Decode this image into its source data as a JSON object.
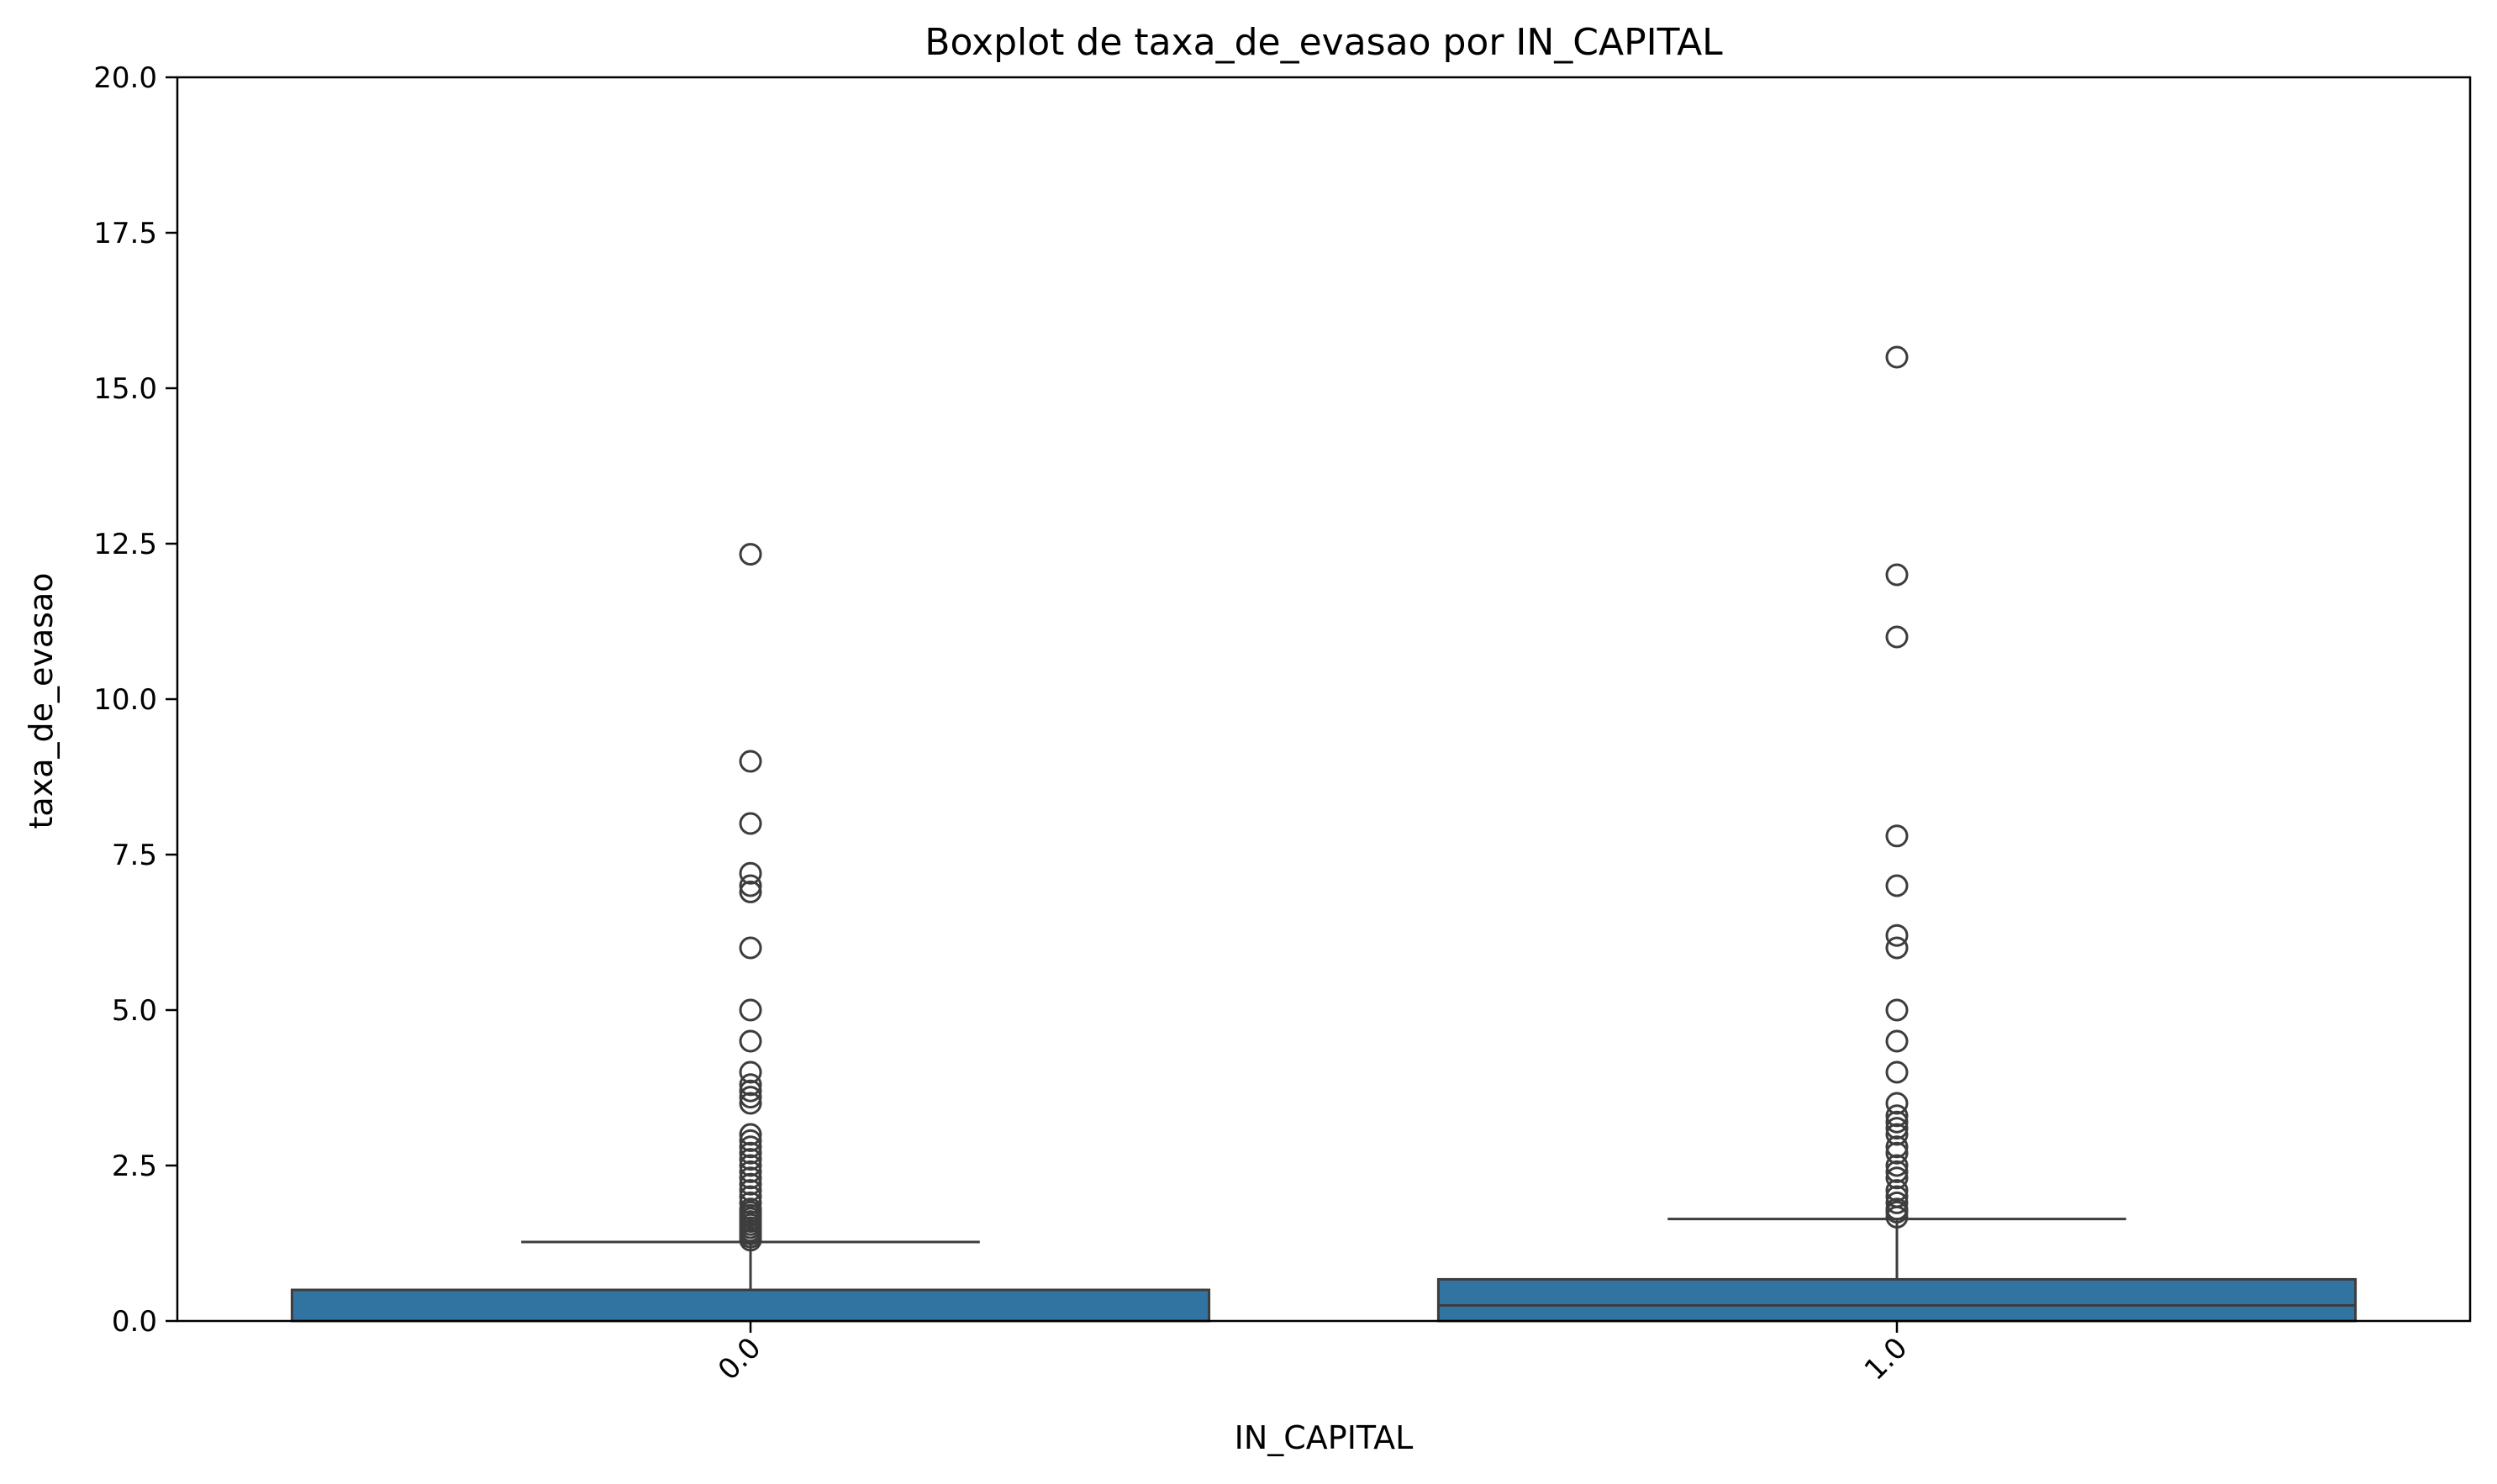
{
  "chart_data": {
    "type": "boxplot",
    "title": "Boxplot de taxa_de_evasao por IN_CAPITAL",
    "xlabel": "IN_CAPITAL",
    "ylabel": "taxa_de_evasao",
    "ylim": [
      0,
      20
    ],
    "yticks": [
      "0.0",
      "2.5",
      "5.0",
      "7.5",
      "10.0",
      "12.5",
      "15.0",
      "17.5",
      "20.0"
    ],
    "categories": [
      "0.0",
      "1.0"
    ],
    "grid": false,
    "box_color": "#3274a1",
    "edge_color": "#3d3d3d",
    "boxes": [
      {
        "category": "0.0",
        "min": 0.0,
        "q1": 0.0,
        "median": 0.0,
        "q3": 0.5,
        "whisker_high": 1.27,
        "outliers": [
          1.3,
          1.35,
          1.4,
          1.45,
          1.5,
          1.55,
          1.6,
          1.65,
          1.7,
          1.75,
          1.8,
          1.9,
          2.0,
          2.1,
          2.2,
          2.3,
          2.4,
          2.5,
          2.6,
          2.7,
          2.8,
          2.9,
          3.0,
          3.5,
          3.6,
          3.7,
          3.8,
          4.0,
          4.5,
          5.0,
          6.0,
          6.9,
          7.0,
          7.2,
          8.0,
          9.0,
          12.33
        ]
      },
      {
        "category": "1.0",
        "min": 0.0,
        "q1": 0.0,
        "median": 0.25,
        "q3": 0.67,
        "whisker_high": 1.64,
        "outliers": [
          1.67,
          1.75,
          1.8,
          1.9,
          2.0,
          2.1,
          2.3,
          2.4,
          2.5,
          2.7,
          2.8,
          3.0,
          3.1,
          3.2,
          3.3,
          3.5,
          4.0,
          4.5,
          5.0,
          6.0,
          6.2,
          7.0,
          7.8,
          11.0,
          12.0,
          15.5
        ]
      }
    ]
  }
}
